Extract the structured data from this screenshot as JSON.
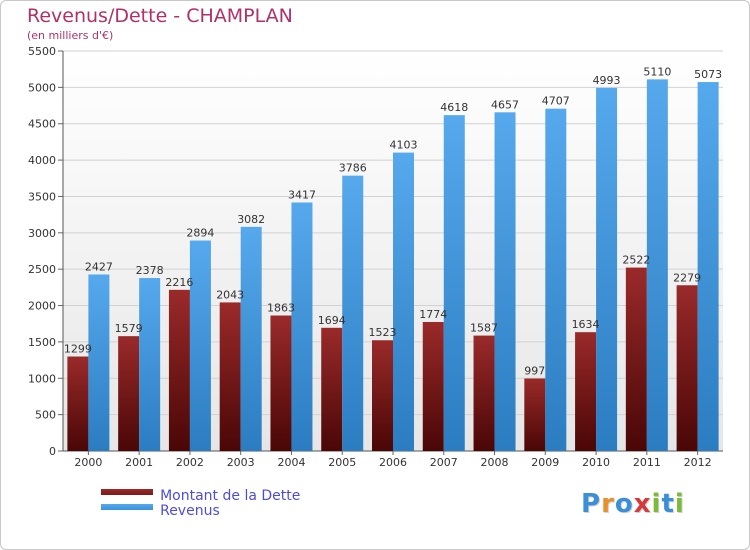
{
  "chart_data": {
    "type": "bar",
    "title": "Revenus/Dette - CHAMPLAN",
    "subtitle": "(en milliers d'€)",
    "xlabel": "",
    "ylabel": "",
    "ylim": [
      0,
      5500
    ],
    "yticks": [
      "0",
      "500",
      "1000",
      "1500",
      "2000",
      "2500",
      "3000",
      "3500",
      "4000",
      "4500",
      "5000",
      "5500"
    ],
    "grid": true,
    "legend_position": "bottom-left",
    "categories": [
      "2000",
      "2001",
      "2002",
      "2003",
      "2004",
      "2005",
      "2006",
      "2007",
      "2008",
      "2009",
      "2010",
      "2011",
      "2012"
    ],
    "series": [
      {
        "name": "Montant de la Dette",
        "color": "#7a1a1a",
        "values": [
          1299,
          1579,
          2216,
          2043,
          1863,
          1694,
          1523,
          1774,
          1587,
          997,
          1634,
          2522,
          2279
        ],
        "labels": [
          "1299",
          "1579",
          "2216",
          "2043",
          "1863",
          "1694",
          "1523",
          "1774",
          "1587",
          "997",
          "1634",
          "2522",
          "2279"
        ]
      },
      {
        "name": "Revenus",
        "color": "#3b93db",
        "values": [
          2427,
          2378,
          2894,
          3082,
          3417,
          3786,
          4103,
          4618,
          4657,
          4707,
          4993,
          5110,
          5073
        ],
        "labels": [
          "2427",
          "2378",
          "2894",
          "3082",
          "3417",
          "3786",
          "4103",
          "4618",
          "4657",
          "4707",
          "4993",
          "5110",
          "5073"
        ]
      }
    ]
  },
  "branding": {
    "letters": [
      {
        "char": "P",
        "color": "#3b8fd6"
      },
      {
        "char": "r",
        "color": "#e8902a"
      },
      {
        "char": "o",
        "color": "#3b8fd6"
      },
      {
        "char": "x",
        "color": "#d63a3a"
      },
      {
        "char": "i",
        "color": "#7cba3a"
      },
      {
        "char": "t",
        "color": "#3b8fd6"
      },
      {
        "char": "i",
        "color": "#7cba3a"
      }
    ]
  }
}
